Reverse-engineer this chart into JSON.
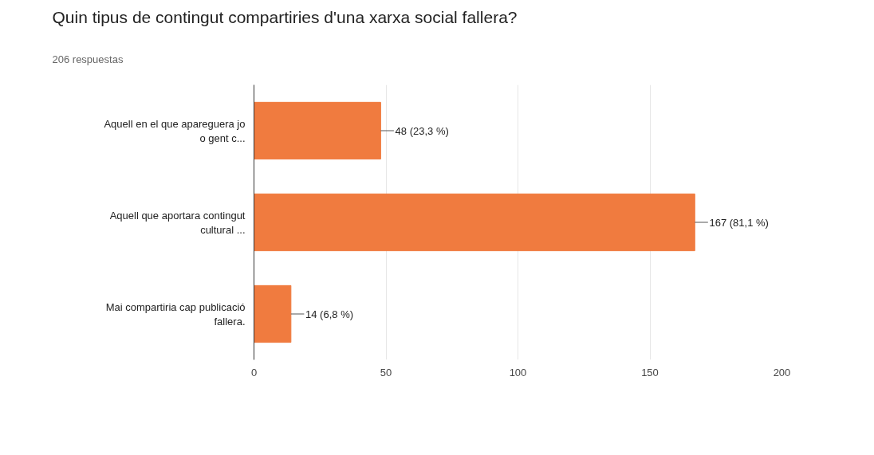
{
  "chart_data": {
    "type": "bar",
    "orientation": "horizontal",
    "title": "Quin tipus de contingut compartiries d'una xarxa social fallera?",
    "subtitle": "206 respuestas",
    "categories": [
      "Aquell en el que apareguera jo\no gent c...",
      "Aquell que aportara contingut\ncultural ...",
      "Mai compartiria cap publicació\nfallera."
    ],
    "values": [
      48,
      167,
      14
    ],
    "value_labels": [
      "48 (23,3 %)",
      "167 (81,1 %)",
      "14 (6,8 %)"
    ],
    "color": "#f07b3f",
    "xlim": [
      0,
      200
    ],
    "xticks": [
      0,
      50,
      100,
      150,
      200
    ],
    "grid": "x"
  }
}
